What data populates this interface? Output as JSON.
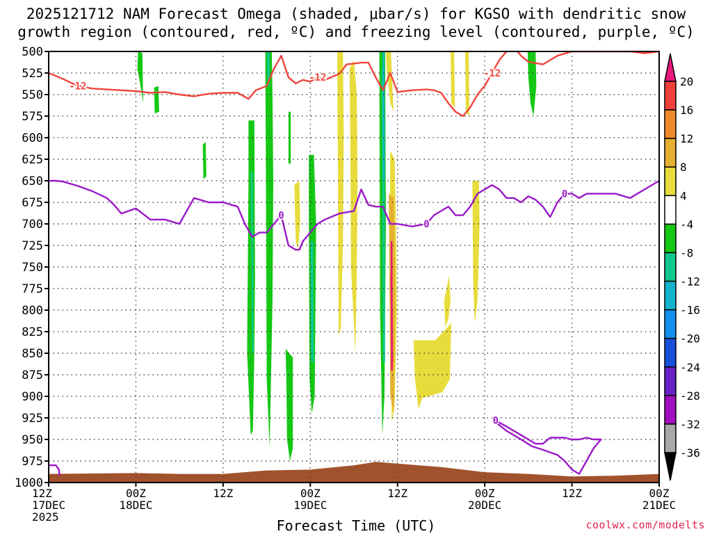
{
  "title_line1": "2025121712 NAM Forecast Omega (shaded, μbar/s) for KGSO with dendritic snow",
  "title_line2": "growth region (contoured, red, ºC) and freezing level (contoured, purple, ºC)",
  "credit": "coolwx.com/modelts",
  "colors": {
    "snow_contour": "#f0443c",
    "freeze_contour": "#9a18c8",
    "terrain": "#a0522d",
    "grid": "#444444"
  },
  "chart_data": {
    "type": "heatmap",
    "xlabel": "Forecast Time (UTC)",
    "ylabel": "",
    "x_range_hours": [
      0,
      84
    ],
    "y_range_hpa": [
      500,
      1000
    ],
    "yticks": [
      500,
      525,
      550,
      575,
      600,
      625,
      650,
      675,
      700,
      725,
      750,
      775,
      800,
      825,
      850,
      875,
      900,
      925,
      950,
      975,
      1000
    ],
    "xticks": [
      {
        "hour": 0,
        "lines": [
          "12Z",
          "17DEC",
          "2025"
        ]
      },
      {
        "hour": 12,
        "lines": [
          "00Z",
          "18DEC"
        ]
      },
      {
        "hour": 24,
        "lines": [
          "12Z"
        ]
      },
      {
        "hour": 36,
        "lines": [
          "00Z",
          "19DEC"
        ]
      },
      {
        "hour": 48,
        "lines": [
          "12Z"
        ]
      },
      {
        "hour": 60,
        "lines": [
          "00Z",
          "20DEC"
        ]
      },
      {
        "hour": 72,
        "lines": [
          "12Z"
        ]
      },
      {
        "hour": 84,
        "lines": [
          "00Z",
          "21DEC"
        ]
      }
    ],
    "colorbar": {
      "levels": [
        -36,
        -32,
        -28,
        -24,
        -20,
        -16,
        -12,
        -8,
        -4,
        4,
        8,
        12,
        16,
        20
      ],
      "labels": [
        "20",
        "16",
        "12",
        "8",
        "4",
        "-4",
        "-8",
        "-12",
        "-16",
        "-20",
        "-24",
        "-28",
        "-32",
        "-36"
      ],
      "bins": [
        {
          "range": [
            20,
            99
          ],
          "color": "#e8187c"
        },
        {
          "range": [
            16,
            20
          ],
          "color": "#f0403c"
        },
        {
          "range": [
            12,
            16
          ],
          "color": "#f08a28"
        },
        {
          "range": [
            8,
            12
          ],
          "color": "#e4b030"
        },
        {
          "range": [
            4,
            8
          ],
          "color": "#e8dc3c"
        },
        {
          "range": [
            -4,
            4
          ],
          "color": "#ffffff"
        },
        {
          "range": [
            -8,
            -4
          ],
          "color": "#14c814"
        },
        {
          "range": [
            -12,
            -8
          ],
          "color": "#10c890"
        },
        {
          "range": [
            -16,
            -12
          ],
          "color": "#10b4cc"
        },
        {
          "range": [
            -20,
            -16
          ],
          "color": "#1490ee"
        },
        {
          "range": [
            -24,
            -20
          ],
          "color": "#1850dc"
        },
        {
          "range": [
            -28,
            -24
          ],
          "color": "#6820c8"
        },
        {
          "range": [
            -32,
            -28
          ],
          "color": "#a010c0"
        },
        {
          "range": [
            -36,
            -32
          ],
          "color": "#a8a8a8"
        },
        {
          "range": [
            -99,
            -36
          ],
          "color": "#000000"
        }
      ]
    },
    "omega_regions": [
      {
        "value": -6,
        "x": [
          12.3,
          12.9,
          13.0,
          12.6,
          12.2
        ],
        "p": [
          500,
          502,
          560,
          538,
          520
        ]
      },
      {
        "value": -6,
        "x": [
          14.5,
          15.1,
          15.2,
          14.6
        ],
        "p": [
          542,
          540,
          570,
          572
        ]
      },
      {
        "value": -6,
        "x": [
          21.2,
          21.6,
          21.7,
          21.3
        ],
        "p": [
          608,
          605,
          645,
          648
        ]
      },
      {
        "value": -6,
        "x": [
          27.5,
          28.3,
          28.4,
          28.3,
          28.1,
          27.8,
          27.3,
          27.5
        ],
        "p": [
          580,
          580,
          760,
          850,
          940,
          945,
          850,
          650
        ]
      },
      {
        "value": -10,
        "x": [
          27.8,
          28.1,
          28.2,
          28.0
        ],
        "p": [
          640,
          640,
          850,
          850
        ]
      },
      {
        "value": -6,
        "x": [
          29.8,
          30.7,
          30.8,
          30.9,
          30.8,
          30.4,
          30.0,
          29.9
        ],
        "p": [
          500,
          500,
          550,
          650,
          790,
          960,
          880,
          650
        ]
      },
      {
        "value": -10,
        "x": [
          30.0,
          30.4,
          30.4,
          30.1
        ],
        "p": [
          500,
          500,
          540,
          540
        ]
      },
      {
        "value": -6,
        "x": [
          33.0,
          33.3,
          33.3,
          33.0
        ],
        "p": [
          570,
          570,
          630,
          630
        ]
      },
      {
        "value": -6,
        "x": [
          32.6,
          33.6,
          33.6,
          33.2,
          32.8,
          32.7
        ],
        "p": [
          845,
          855,
          960,
          975,
          950,
          880
        ]
      },
      {
        "value": -6,
        "x": [
          35.8,
          36.5,
          36.8,
          36.6,
          36.2,
          35.9,
          35.8
        ],
        "p": [
          620,
          620,
          700,
          900,
          920,
          880,
          700
        ]
      },
      {
        "value": -10,
        "x": [
          36.0,
          36.4,
          36.5,
          36.1
        ],
        "p": [
          720,
          720,
          860,
          860
        ]
      },
      {
        "value": -6,
        "x": [
          45.5,
          46.3,
          46.4,
          46.2,
          45.9,
          45.6
        ],
        "p": [
          500,
          500,
          700,
          900,
          945,
          800
        ]
      },
      {
        "value": -10,
        "x": [
          45.8,
          46.2,
          46.3,
          46.0
        ],
        "p": [
          520,
          520,
          860,
          860
        ]
      },
      {
        "value": -14,
        "x": [
          45.95,
          46.2,
          46.25,
          46.05
        ],
        "p": [
          500,
          500,
          650,
          650
        ]
      },
      {
        "value": -6,
        "x": [
          65.9,
          67.0,
          67.1,
          66.7,
          66.3,
          66.0
        ],
        "p": [
          500,
          500,
          540,
          575,
          560,
          530
        ]
      },
      {
        "value": 6,
        "x": [
          33.8,
          34.5,
          34.6,
          34.3,
          34.0,
          33.9
        ],
        "p": [
          655,
          650,
          700,
          730,
          720,
          690
        ]
      },
      {
        "value": 6,
        "x": [
          41.4,
          42.0,
          42.4,
          42.5,
          42.4,
          42.2,
          41.6,
          41.5
        ],
        "p": [
          520,
          510,
          550,
          650,
          750,
          850,
          750,
          600
        ]
      },
      {
        "value": 6,
        "x": [
          39.7,
          40.5,
          40.6,
          40.5,
          40.2,
          39.9,
          39.8
        ],
        "p": [
          500,
          500,
          600,
          720,
          820,
          830,
          650
        ]
      },
      {
        "value": 6,
        "x": [
          47.0,
          47.6,
          47.8,
          47.9,
          47.6,
          47.2,
          46.9
        ],
        "p": [
          615,
          625,
          700,
          800,
          910,
          930,
          760
        ]
      },
      {
        "value": 6,
        "x": [
          50.2,
          53.2,
          55.4,
          55.2,
          54.2,
          51.4,
          50.9,
          50.4
        ],
        "p": [
          835,
          835,
          815,
          880,
          895,
          902,
          915,
          880
        ]
      },
      {
        "value": 6,
        "x": [
          54.4,
          55.1,
          55.3,
          55.0,
          54.6
        ],
        "p": [
          790,
          760,
          790,
          810,
          820
        ]
      },
      {
        "value": 6,
        "x": [
          58.3,
          59.2,
          59.3,
          59.0,
          58.6,
          58.4
        ],
        "p": [
          650,
          650,
          700,
          790,
          815,
          760
        ]
      },
      {
        "value": 6,
        "x": [
          55.3,
          55.8,
          55.9,
          55.4
        ],
        "p": [
          500,
          500,
          565,
          560
        ]
      },
      {
        "value": 6,
        "x": [
          57.3,
          57.8,
          57.9,
          57.4
        ],
        "p": [
          500,
          500,
          575,
          570
        ]
      },
      {
        "value": 6,
        "x": [
          46.4,
          47.1,
          47.4,
          47.5,
          47.0,
          46.5
        ],
        "p": [
          500,
          500,
          560,
          570,
          560,
          520
        ]
      },
      {
        "value": 10,
        "x": [
          46.8,
          47.5,
          47.7,
          47.5,
          47.0
        ],
        "p": [
          665,
          670,
          780,
          920,
          900
        ]
      },
      {
        "value": 18,
        "x": [
          47.0,
          47.3,
          47.4,
          47.2
        ],
        "p": [
          760,
          760,
          860,
          860
        ]
      },
      {
        "value": 22,
        "x": [
          47.05,
          47.3,
          47.35,
          47.1
        ],
        "p": [
          720,
          720,
          870,
          870
        ]
      }
    ],
    "dendritic_contours": [
      {
        "label": "-12",
        "x": [
          0,
          2,
          4,
          6,
          8,
          10,
          12,
          14,
          16,
          18,
          20,
          22,
          24,
          26,
          27.5,
          28.5,
          30,
          31,
          32,
          33,
          34,
          35,
          36,
          37,
          38,
          40,
          41,
          42,
          43,
          44,
          45,
          46,
          47,
          48,
          50,
          52,
          53,
          54,
          55,
          56,
          57,
          58,
          59,
          60,
          61,
          62,
          63,
          64,
          65,
          66,
          68,
          70,
          72,
          74,
          76,
          78,
          80,
          82,
          84
        ],
        "p": [
          525,
          532,
          540,
          543,
          544,
          545,
          546,
          548,
          547,
          550,
          552,
          549,
          548,
          548,
          555,
          545,
          540,
          520,
          505,
          530,
          537,
          533,
          535,
          530,
          533,
          526,
          515,
          514,
          513,
          513,
          530,
          545,
          525,
          547,
          545,
          544,
          545,
          548,
          560,
          570,
          575,
          565,
          550,
          540,
          525,
          510,
          500,
          495,
          505,
          512,
          515,
          505,
          500,
          500,
          500,
          500,
          500,
          502,
          500
        ]
      }
    ],
    "freezing_contours": [
      {
        "label": "0",
        "x": [
          0,
          1,
          2,
          4,
          6,
          8,
          9,
          10,
          12,
          14,
          16,
          18,
          20,
          22,
          24,
          26,
          27,
          28,
          29,
          30,
          31,
          32,
          33,
          34,
          34.5,
          35,
          36,
          37,
          38,
          40,
          42,
          43,
          44,
          45,
          46,
          47,
          48,
          50,
          52,
          53,
          54,
          55,
          56,
          57,
          58,
          59,
          60,
          61,
          62,
          63,
          64,
          65,
          66,
          67,
          68,
          69,
          70,
          71,
          72,
          73,
          74,
          76,
          78,
          80,
          82,
          84
        ],
        "p": [
          650,
          650,
          651,
          656,
          662,
          670,
          678,
          688,
          682,
          695,
          695,
          700,
          670,
          675,
          675,
          680,
          700,
          715,
          710,
          710,
          700,
          690,
          725,
          730,
          730,
          720,
          710,
          700,
          695,
          688,
          685,
          660,
          678,
          680,
          680,
          700,
          700,
          703,
          700,
          690,
          685,
          680,
          690,
          690,
          680,
          665,
          660,
          655,
          660,
          670,
          670,
          675,
          668,
          672,
          680,
          692,
          675,
          665,
          665,
          670,
          665,
          665,
          665,
          670,
          660,
          650
        ]
      },
      {
        "label": "0",
        "x": [
          0,
          1,
          1.4,
          1.5
        ],
        "p": [
          980,
          980,
          985,
          992
        ]
      },
      {
        "label": "0",
        "x": [
          61.5,
          63,
          65,
          66,
          67,
          68,
          69,
          70,
          71,
          72,
          73,
          74,
          75,
          76,
          75,
          74,
          73,
          72,
          71,
          70,
          69,
          68,
          66.5,
          65,
          63,
          61.5
        ],
        "p": [
          928,
          935,
          945,
          950,
          955,
          955,
          948,
          948,
          948,
          950,
          950,
          948,
          950,
          950,
          960,
          975,
          990,
          985,
          975,
          968,
          965,
          962,
          958,
          950,
          940,
          930
        ]
      }
    ],
    "terrain_top_p": [
      {
        "x": 0,
        "p": 990
      },
      {
        "x": 12,
        "p": 989
      },
      {
        "x": 18,
        "p": 990
      },
      {
        "x": 24,
        "p": 990
      },
      {
        "x": 30,
        "p": 986
      },
      {
        "x": 36,
        "p": 985
      },
      {
        "x": 42,
        "p": 980
      },
      {
        "x": 45,
        "p": 976
      },
      {
        "x": 48,
        "p": 978
      },
      {
        "x": 54,
        "p": 982
      },
      {
        "x": 60,
        "p": 988
      },
      {
        "x": 66,
        "p": 990
      },
      {
        "x": 72,
        "p": 993
      },
      {
        "x": 78,
        "p": 992
      },
      {
        "x": 84,
        "p": 990
      }
    ]
  }
}
